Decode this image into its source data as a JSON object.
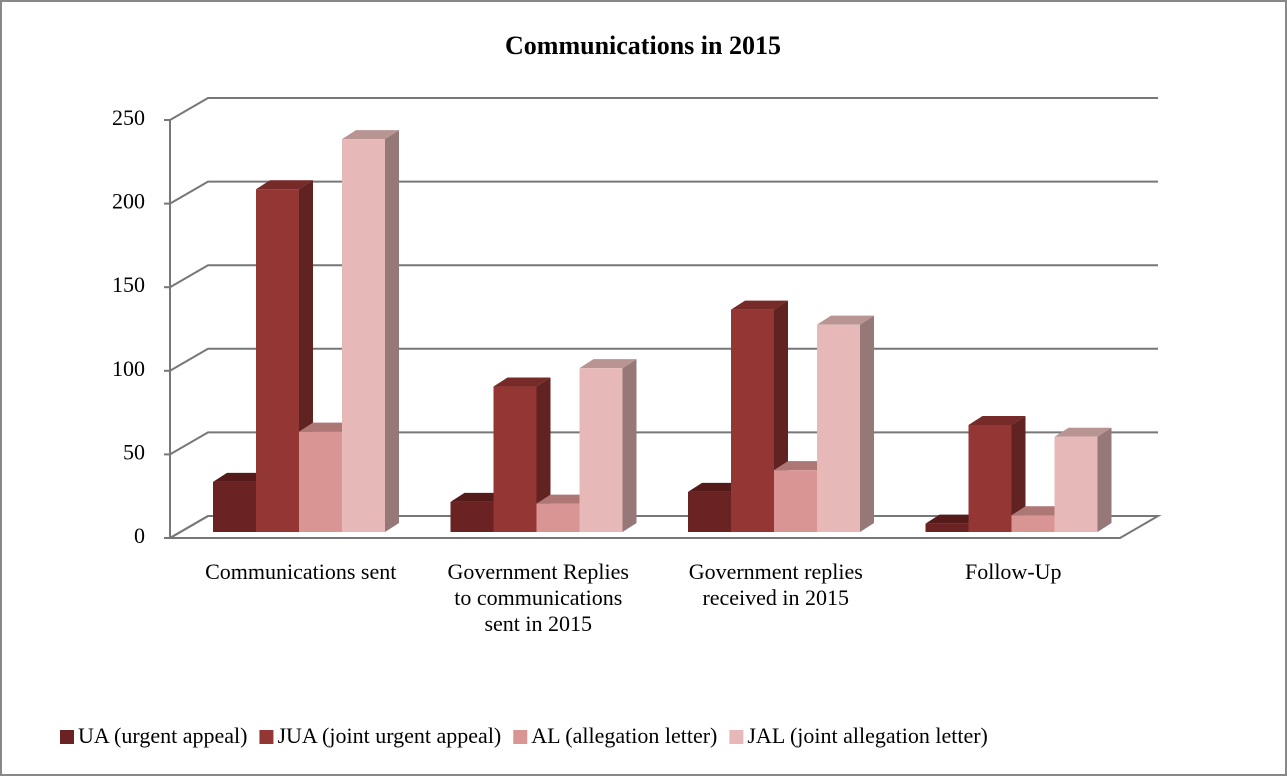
{
  "chart_data": {
    "type": "bar3d",
    "title": "Communications in 2015",
    "categories": [
      "Communications sent",
      "Government Replies to communications sent in 2015",
      "Government replies received in 2015",
      "Follow-Up"
    ],
    "series": [
      {
        "name": "UA (urgent appeal)",
        "color": "#6b2222",
        "values": [
          30,
          18,
          24,
          5
        ]
      },
      {
        "name": "JUA (joint urgent appeal)",
        "color": "#943634",
        "values": [
          205,
          87,
          133,
          64
        ]
      },
      {
        "name": "AL (allegation letter)",
        "color": "#d99594",
        "values": [
          60,
          17,
          37,
          10
        ]
      },
      {
        "name": "JAL (joint allegation letter)",
        "color": "#e6b9b8",
        "values": [
          235,
          98,
          124,
          57
        ]
      }
    ],
    "ylim": [
      0,
      250
    ],
    "yticks": [
      0,
      50,
      100,
      150,
      200,
      250
    ],
    "grid": true,
    "legend": "bottom"
  }
}
